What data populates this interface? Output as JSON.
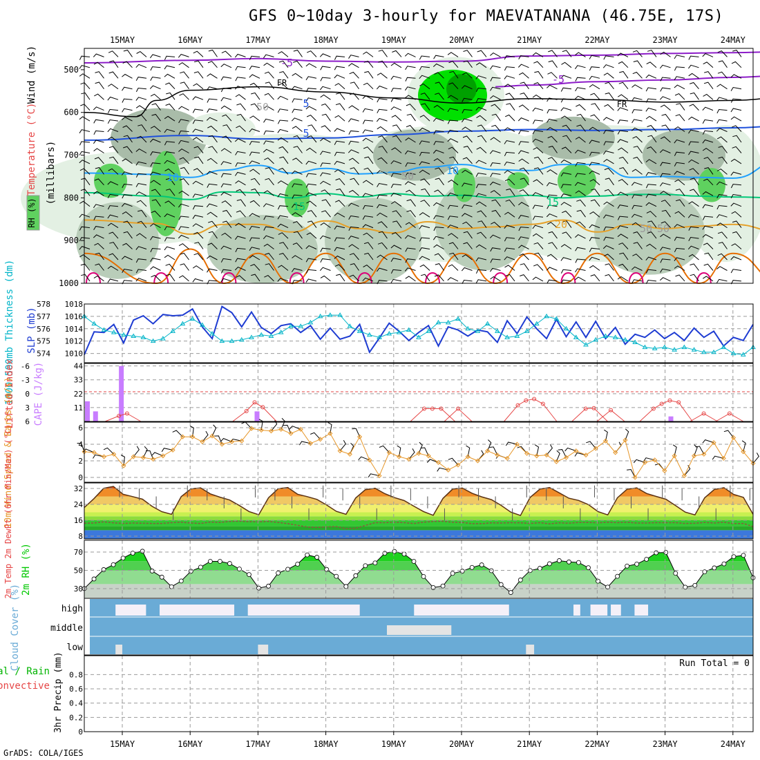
{
  "title": "GFS 0~10day 3-hourly for MAEVATANANA (46.75E, 17S)",
  "footer": "GrADS: COLA/IGES",
  "date_labels": [
    "15MAY",
    "16MAY",
    "17MAY",
    "18MAY",
    "19MAY",
    "20MAY",
    "21MAY",
    "22MAY",
    "23MAY",
    "24MAY"
  ],
  "colors": {
    "rh_light": "#e3f0e3",
    "rh_mid": "#b9cdb9",
    "rh_gray": "#a9bca9",
    "rh_green": "#5fd15f",
    "rh_bright": "#00e000",
    "rh_dark": "#00a000",
    "temp_minus5": "#8c1cc8",
    "temp_fr": "#000000",
    "temp_5": "#1e50dc",
    "temp_10": "#1ea0ff",
    "temp_15": "#00c878",
    "temp_20": "#e6a028",
    "temp_25": "#e66e00",
    "temp_30": "#dc0078",
    "slp": "#1e3cd2",
    "thickness": "#00b4c8",
    "lifted": "#e64646",
    "cape": "#c87dff",
    "wind_speed": "#e69628",
    "barb": "#5a3214",
    "cloud": "#6aabd6",
    "rh2m": "#00c800"
  },
  "chart_data": [
    {
      "panel": "upper-air",
      "type": "heatmap",
      "ylabel_parts": [
        "RH (%)",
        "Temperature (°C)",
        "Wind (m/s)"
      ],
      "ylabel2": "(millibars)",
      "y_ticks": [
        500,
        600,
        700,
        800,
        900,
        1000
      ],
      "ylim": [
        1000,
        450
      ],
      "contour_labels": [
        "-5",
        "-5",
        "FR",
        "FR",
        "5",
        "5",
        "10",
        "10",
        "10",
        "15",
        "15",
        "20",
        "50",
        "50",
        "50",
        "50"
      ],
      "isotherms": [
        {
          "name": "-5",
          "x_days": [
            0,
            1,
            2,
            3,
            4,
            5,
            6,
            7,
            8,
            9,
            9.72
          ],
          "p": [
            484,
            478,
            474,
            480,
            482,
            480,
            468,
            466,
            462,
            460,
            458
          ]
        },
        {
          "name": "-5b",
          "x_days": [
            5.5,
            6,
            7,
            8,
            9,
            9.72
          ],
          "p": [
            540,
            536,
            528,
            524,
            518,
            514
          ]
        },
        {
          "name": "FR",
          "x_days": [
            0,
            0.2,
            0.5,
            1,
            2,
            3,
            4,
            5,
            6,
            7,
            8,
            9,
            9.72
          ],
          "p": [
            600,
            610,
            572,
            548,
            540,
            552,
            566,
            578,
            568,
            570,
            576,
            572,
            566
          ]
        },
        {
          "name": "5",
          "x_days": [
            0,
            1,
            2,
            3,
            4,
            5,
            6,
            7,
            8,
            9,
            9.72
          ],
          "p": [
            665,
            654,
            662,
            660,
            652,
            644,
            640,
            642,
            640,
            636,
            632
          ]
        },
        {
          "name": "10",
          "x_days": [
            0,
            0.5,
            1,
            1.5,
            2,
            2.5,
            3,
            3.5,
            4,
            4.5,
            5,
            5.5,
            6,
            6.5,
            7,
            7.5,
            8,
            8.5,
            9,
            9.72
          ],
          "p": [
            742,
            745,
            752,
            735,
            724,
            742,
            731,
            744,
            740,
            728,
            722,
            734,
            736,
            722,
            722,
            752,
            750,
            752,
            754,
            712
          ]
        },
        {
          "name": "15",
          "x_days": [
            0,
            0.5,
            1,
            1.5,
            2,
            2.5,
            3,
            3.5,
            4,
            4.5,
            5,
            5.5,
            6,
            6.5,
            7,
            7.5,
            8,
            8.5,
            9,
            9.72
          ],
          "p": [
            788,
            796,
            804,
            786,
            788,
            800,
            790,
            798,
            790,
            796,
            794,
            800,
            794,
            800,
            796,
            792,
            792,
            796,
            798,
            800
          ]
        },
        {
          "name": "20",
          "x_days": [
            0,
            0.5,
            1,
            1.5,
            2,
            2.5,
            3,
            3.5,
            4,
            4.5,
            5,
            5.5,
            6,
            6.5,
            7,
            7.5,
            8,
            8.5,
            9,
            9.72
          ],
          "p": [
            852,
            860,
            885,
            862,
            862,
            880,
            854,
            872,
            882,
            856,
            872,
            868,
            862,
            852,
            880,
            862,
            872,
            866,
            862,
            880
          ]
        },
        {
          "name": "25",
          "x_days": [
            0,
            0.5,
            1,
            1.5,
            2,
            2.5,
            3,
            3.5,
            4,
            4.5,
            5,
            5.5,
            6,
            6.5,
            7,
            7.5,
            8,
            8.5,
            9,
            9.72
          ],
          "p": [
            930,
            1000,
            920,
            1000,
            930,
            1000,
            930,
            1000,
            930,
            1000,
            930,
            1000,
            930,
            1000,
            930,
            1000,
            930,
            1000,
            930,
            1000
          ]
        }
      ]
    },
    {
      "panel": "slp-thickness",
      "type": "line",
      "ylabel_slp": "SLP (mb)",
      "ylabel_thk": "1000-500mb Thickness (dm)",
      "y_ticks_slp": [
        1010,
        1012,
        1014,
        1016,
        1018
      ],
      "y_ticks_thk": [
        574,
        575,
        576,
        577,
        578
      ],
      "ylim_slp": [
        1008.5,
        1018
      ],
      "series": [
        {
          "name": "SLP",
          "values": [
            1009.8,
            1013.5,
            1013.4,
            1014.7,
            1011.7,
            1015.4,
            1016.1,
            1014.8,
            1016.3,
            1016.1,
            1016.2,
            1017.2,
            1014.3,
            1012.4,
            1017.6,
            1016.6,
            1014.3,
            1016.7,
            1014.2,
            1013.2,
            1014.5,
            1014.8,
            1013.4,
            1014.5,
            1012.3,
            1014.1,
            1012.3,
            1012.8,
            1014.7,
            1010.2,
            1012.5,
            1014.9,
            1013.6,
            1012.1,
            1013.4,
            1014.5,
            1011.2,
            1014.3,
            1013.8,
            1012.8,
            1013.8,
            1013.5,
            1011.8,
            1015.3,
            1013.2,
            1015.9,
            1014.0,
            1012.4,
            1015.5,
            1012.7,
            1015.1,
            1012.6,
            1015.2,
            1012.4,
            1014.2,
            1011.5,
            1013.1,
            1012.6,
            1013.8,
            1012.4,
            1013.4,
            1012.1,
            1014.1,
            1012.6,
            1013.6,
            1011.2,
            1012.6,
            1012.1,
            1014.7
          ]
        },
        {
          "name": "Thickness",
          "values": [
            577.0,
            576.4,
            575.9,
            575.7,
            575.5,
            575.4,
            575.3,
            575.0,
            575.2,
            575.8,
            576.4,
            576.8,
            576.3,
            575.6,
            575.0,
            575.0,
            575.1,
            575.3,
            575.5,
            575.4,
            575.7,
            576.2,
            576.2,
            576.5,
            577.0,
            577.1,
            577.1,
            576.2,
            575.8,
            575.5,
            575.3,
            575.6,
            575.7,
            575.9,
            575.3,
            575.8,
            576.5,
            576.5,
            576.8,
            576.0,
            575.8,
            576.4,
            575.8,
            575.3,
            575.4,
            575.8,
            576.4,
            577.0,
            576.8,
            576.0,
            575.3,
            574.7,
            575.1,
            575.4,
            575.3,
            575.1,
            574.9,
            574.5,
            574.4,
            574.5,
            574.3,
            574.5,
            574.3,
            574.1,
            574.1,
            574.5,
            574.0,
            573.9,
            574.5
          ]
        }
      ]
    },
    {
      "panel": "lifted-cape",
      "type": "bar",
      "ylabel_li": "Lifted Index",
      "ylabel_cape": "CAPE (J/kg)",
      "y_ticks_cape": [
        11,
        22,
        33,
        44
      ],
      "y_ticks_li": [
        "-6",
        "-3",
        "0",
        "3",
        "6"
      ],
      "cape_bars": [
        {
          "x": 0.0,
          "value": 16
        },
        {
          "x": 0.12,
          "value": 8
        },
        {
          "x": 0.5,
          "value": 44
        },
        {
          "x": 2.5,
          "value": 8
        },
        {
          "x": 8.6,
          "value": 4
        }
      ],
      "lifted_index": [
        {
          "x": 0.5,
          "value": 5.0
        },
        {
          "x": 0.62,
          "value": 4.5
        },
        {
          "x": 2.38,
          "value": 4.0
        },
        {
          "x": 2.5,
          "value": 2.2
        },
        {
          "x": 2.62,
          "value": 3.2
        },
        {
          "x": 5.0,
          "value": 3.5
        },
        {
          "x": 5.12,
          "value": 3.5
        },
        {
          "x": 5.25,
          "value": 3.5
        },
        {
          "x": 5.5,
          "value": 3.5
        },
        {
          "x": 6.38,
          "value": 2.8
        },
        {
          "x": 6.5,
          "value": 1.8
        },
        {
          "x": 6.62,
          "value": 1.5
        },
        {
          "x": 6.75,
          "value": 2.5
        },
        {
          "x": 7.38,
          "value": 3.5
        },
        {
          "x": 7.5,
          "value": 3.4
        },
        {
          "x": 7.75,
          "value": 3.8
        },
        {
          "x": 8.38,
          "value": 3.5
        },
        {
          "x": 8.5,
          "value": 2.5
        },
        {
          "x": 8.62,
          "value": 1.8
        },
        {
          "x": 8.75,
          "value": 2.2
        },
        {
          "x": 9.12,
          "value": 4.5
        },
        {
          "x": 9.5,
          "value": 4.5
        }
      ],
      "zero_line": 0
    },
    {
      "panel": "wind10m",
      "type": "line",
      "ylabel": "10m Wind Speed & Barbs (m/s)",
      "y_ticks": [
        0,
        2,
        4,
        6
      ],
      "ylim": [
        0,
        6.5
      ],
      "values": [
        3.1,
        3.0,
        2.5,
        2.8,
        1.4,
        2.5,
        2.4,
        2.2,
        2.6,
        3.3,
        4.9,
        4.9,
        4.3,
        5.0,
        4.0,
        4.3,
        4.4,
        5.9,
        5.7,
        5.6,
        5.8,
        5.3,
        5.8,
        4.1,
        4.6,
        5.3,
        3.2,
        2.8,
        4.9,
        2.1,
        0.2,
        3.0,
        2.5,
        2.2,
        2.9,
        2.6,
        1.8,
        0.9,
        1.5,
        2.5,
        2.0,
        3.2,
        2.7,
        2.3,
        4.0,
        2.9,
        2.6,
        2.7,
        1.9,
        2.4,
        3.2,
        2.7,
        3.5,
        4.4,
        3.0,
        4.5,
        0.0,
        1.8,
        2.1,
        0.8,
        2.6,
        0.2,
        2.6,
        2.8,
        4.2,
        2.3,
        4.8,
        3.1,
        1.7
      ]
    },
    {
      "panel": "temp2m",
      "type": "area",
      "ylabel": "2m Temp 2m DewPt (6hr Min/Max) (°C)",
      "y_ticks": [
        8,
        16,
        24,
        32
      ],
      "ylim": [
        6,
        35
      ],
      "temp": [
        22.4,
        26.9,
        32.1,
        33.0,
        29.1,
        27.9,
        26.6,
        23.0,
        20.3,
        19.0,
        27.9,
        31.8,
        32.3,
        29.3,
        27.6,
        26.2,
        23.4,
        20.4,
        18.8,
        27.3,
        31.9,
        32.5,
        29.1,
        27.9,
        26.5,
        23.7,
        20.5,
        19.0,
        27.2,
        31.4,
        32.1,
        29.4,
        27.4,
        25.9,
        23.1,
        20.4,
        18.5,
        27.0,
        31.7,
        32.2,
        29.6,
        27.8,
        26.4,
        23.5,
        20.1,
        18.4,
        27.5,
        31.7,
        32.5,
        29.8,
        27.1,
        26.0,
        23.9,
        20.4,
        18.7,
        27.3,
        31.6,
        32.3,
        29.5,
        28.0,
        26.6,
        23.4,
        20.1,
        18.7,
        27.3,
        31.5,
        32.4,
        29.0,
        27.5,
        19.0
      ],
      "dewpoint": [
        14.5,
        14.6,
        15.2,
        14.7,
        14.4,
        14.6,
        14.5,
        14.4,
        14.4,
        14.8,
        15.0,
        14.6,
        14.4,
        15.1,
        14.9,
        15.4,
        15.5,
        15.3,
        15.2,
        15.4,
        14.9,
        14.3,
        13.5,
        12.6,
        12.4,
        12.7,
        12.8,
        11.8,
        12.0,
        13.4,
        14.8,
        14.8,
        15.0,
        14.8,
        14.4,
        15.0,
        15.4,
        15.5,
        15.0,
        14.9,
        14.3,
        14.3,
        14.7,
        14.6,
        14.8,
        14.7,
        14.4,
        14.8,
        14.2,
        14.7,
        14.5,
        14.9,
        14.9,
        14.7,
        15.0,
        14.8,
        15.0,
        14.6,
        14.6,
        14.8,
        14.8,
        14.8,
        14.4,
        14.5,
        14.9,
        14.6,
        15.0,
        14.3,
        14.4,
        12.8
      ]
    },
    {
      "panel": "rh2m",
      "type": "area",
      "ylabel": "2m RH (%)",
      "y_ticks": [
        30,
        50,
        70
      ],
      "ylim": [
        24,
        76
      ],
      "values": [
        30.1,
        40.6,
        50.8,
        56.2,
        63.4,
        68.8,
        70.9,
        49.3,
        42.6,
        32.1,
        38.4,
        49.0,
        53.5,
        59.8,
        59.8,
        57.5,
        51.5,
        45.4,
        30.6,
        32.8,
        47.1,
        51.2,
        56.8,
        66.9,
        64.3,
        51.0,
        43.5,
        32.4,
        44.2,
        55.1,
        58.1,
        68.7,
        70.6,
        67.8,
        59.8,
        43.3,
        31.2,
        32.9,
        46.7,
        49.1,
        53.2,
        56.0,
        49.6,
        34.5,
        25.8,
        39.5,
        49.8,
        52.2,
        57.2,
        60.6,
        59.2,
        58.6,
        52.9,
        38.2,
        31.7,
        43.5,
        54.7,
        56.9,
        62.1,
        69.2,
        69.6,
        46.8,
        31.6,
        33.6,
        48.4,
        52.7,
        57.1,
        65.0,
        66.4,
        41.9
      ]
    },
    {
      "panel": "cloud",
      "type": "heatmap",
      "ylabel": "Cloud Cover (%)",
      "layers": [
        "high",
        "middle",
        "low"
      ],
      "clear_spans": {
        "high": [
          [
            0.45,
            0.9
          ],
          [
            1.1,
            2.2
          ],
          [
            2.4,
            4.05
          ],
          [
            4.85,
            6.25
          ],
          [
            7.2,
            7.3
          ],
          [
            7.45,
            7.7
          ],
          [
            7.75,
            7.9
          ],
          [
            8.1,
            8.3
          ]
        ],
        "middle": [
          [
            4.45,
            5.4
          ]
        ],
        "low": [
          [
            0.45,
            0.55
          ],
          [
            2.55,
            2.7
          ],
          [
            6.5,
            6.62
          ]
        ]
      }
    },
    {
      "panel": "precip",
      "type": "line",
      "ylabel": "3hr Precip (mm)",
      "ylabel_left": [
        "Total / Rain",
        "Convective"
      ],
      "y_ticks": [
        "0",
        "0.2",
        "0.4",
        "0.6",
        "0.8"
      ],
      "ylim": [
        0,
        1
      ],
      "annotation": "Run Total = 0",
      "values": []
    }
  ]
}
